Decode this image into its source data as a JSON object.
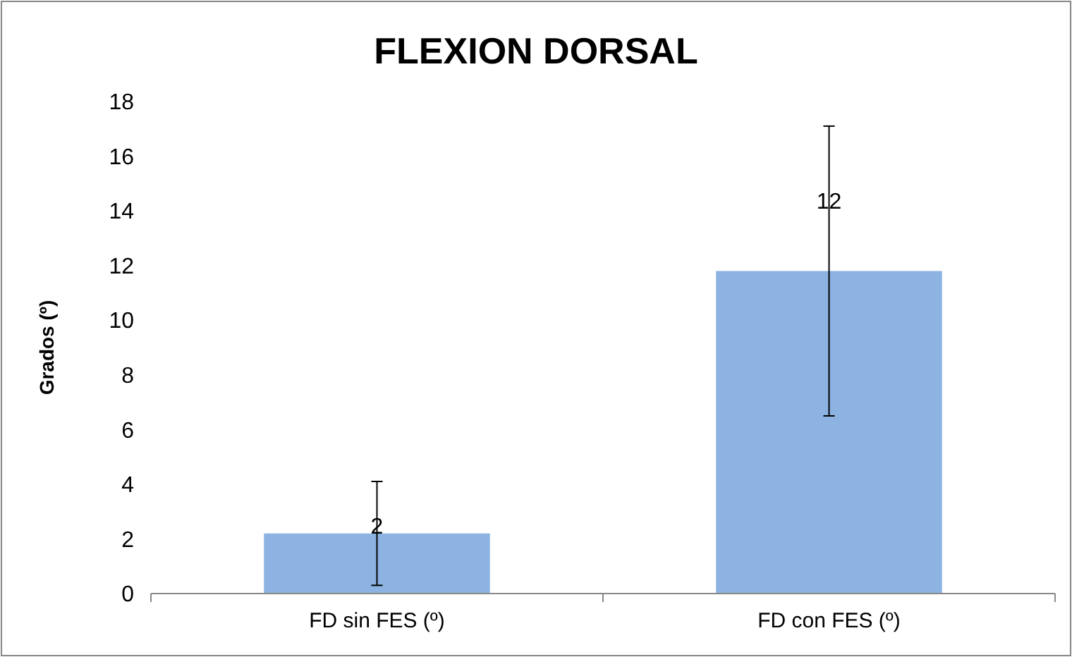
{
  "chart_data": {
    "type": "bar",
    "title": "FLEXION DORSAL",
    "ylabel": "Grados (º)",
    "categories": [
      "FD sin FES (º)",
      "FD con FES (º)"
    ],
    "values": [
      2.2,
      11.8
    ],
    "value_labels": [
      "2",
      "12"
    ],
    "errors": [
      1.9,
      5.3
    ],
    "color": "#8db3e2",
    "ylim": [
      0,
      18
    ],
    "yticks": [
      0,
      2,
      4,
      6,
      8,
      10,
      12,
      14,
      16,
      18
    ],
    "grid": false
  }
}
